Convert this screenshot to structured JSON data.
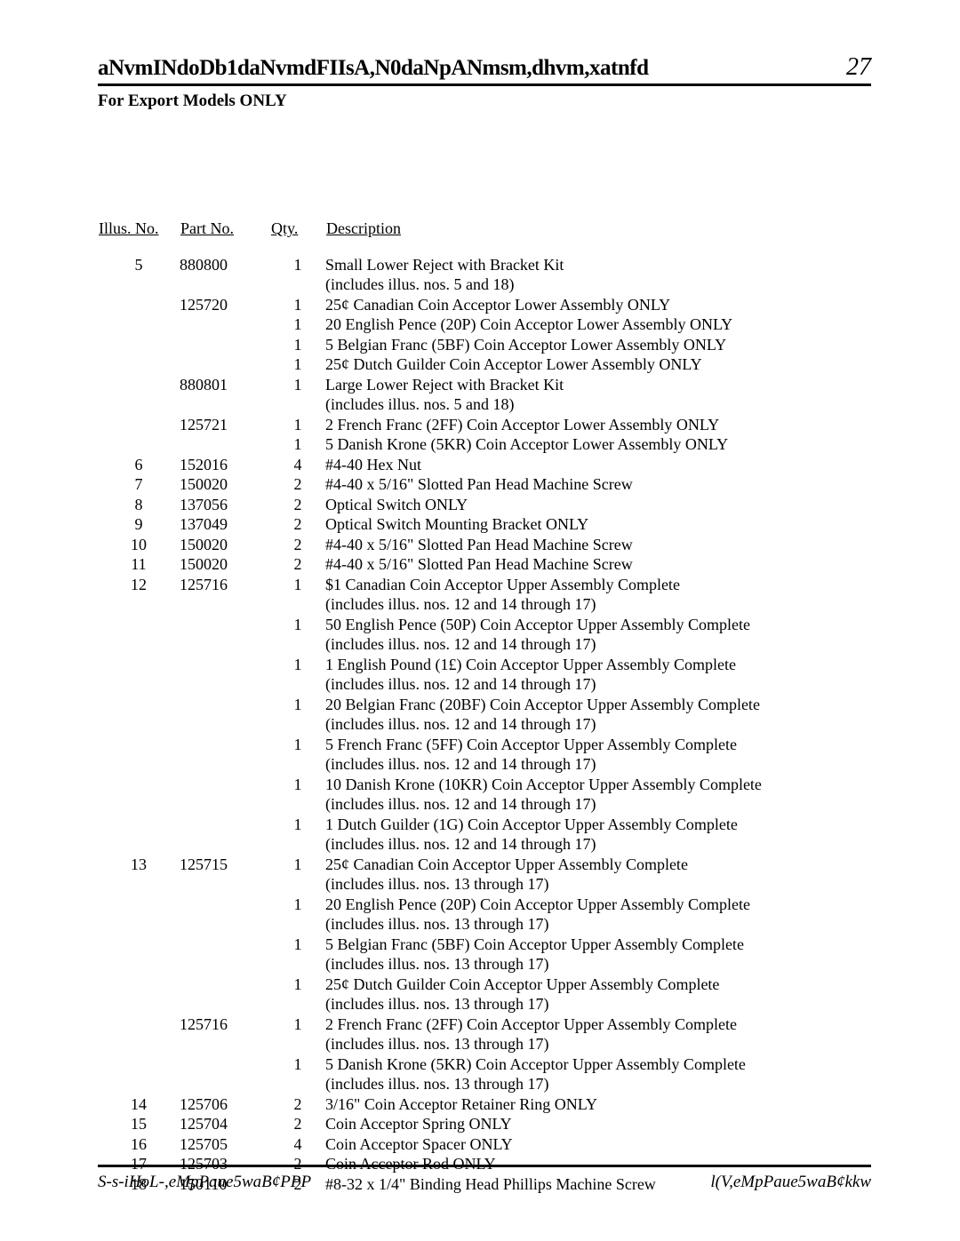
{
  "header": {
    "title": "aNvmINdoDb1daNvmdFIIsA,N0daNpANmsm,dhvm,xatnfd",
    "page_number": "27",
    "subhead": "For Export Models ONLY"
  },
  "columns": {
    "illus": "Illus. No.",
    "part": "Part No.",
    "qty": "Qty.",
    "desc": "Description"
  },
  "rows": [
    {
      "illus": "5",
      "part": "880800",
      "qty": "1",
      "desc": "Small Lower Reject with Bracket Kit"
    },
    {
      "illus": "",
      "part": "",
      "qty": "",
      "desc": "(includes illus. nos. 5 and 18)"
    },
    {
      "illus": "",
      "part": "125720",
      "qty": "1",
      "desc": "25¢ Canadian Coin Acceptor Lower Assembly ONLY"
    },
    {
      "illus": "",
      "part": "",
      "qty": "1",
      "desc": "20 English Pence (20P) Coin Acceptor Lower Assembly ONLY"
    },
    {
      "illus": "",
      "part": "",
      "qty": "1",
      "desc": "5 Belgian Franc (5BF) Coin Acceptor Lower Assembly ONLY"
    },
    {
      "illus": "",
      "part": "",
      "qty": "1",
      "desc": "25¢ Dutch Guilder Coin Acceptor Lower Assembly ONLY"
    },
    {
      "illus": "",
      "part": "880801",
      "qty": "1",
      "desc": "Large Lower Reject with Bracket Kit"
    },
    {
      "illus": "",
      "part": "",
      "qty": "",
      "desc": "(includes illus. nos. 5 and 18)"
    },
    {
      "illus": "",
      "part": "125721",
      "qty": "1",
      "desc": "2 French Franc (2FF) Coin Acceptor Lower Assembly ONLY"
    },
    {
      "illus": "",
      "part": "",
      "qty": "1",
      "desc": "5 Danish Krone (5KR) Coin Acceptor Lower Assembly ONLY"
    },
    {
      "illus": "6",
      "part": "152016",
      "qty": "4",
      "desc": "#4-40 Hex Nut"
    },
    {
      "illus": "7",
      "part": "150020",
      "qty": "2",
      "desc": "#4-40 x 5/16\" Slotted Pan Head Machine Screw"
    },
    {
      "illus": "8",
      "part": "137056",
      "qty": "2",
      "desc": "Optical Switch ONLY"
    },
    {
      "illus": "9",
      "part": "137049",
      "qty": "2",
      "desc": "Optical Switch Mounting Bracket ONLY"
    },
    {
      "illus": "10",
      "part": "150020",
      "qty": "2",
      "desc": "#4-40 x 5/16\" Slotted Pan Head Machine Screw"
    },
    {
      "illus": "11",
      "part": "150020",
      "qty": "2",
      "desc": "#4-40 x 5/16\" Slotted Pan Head Machine Screw"
    },
    {
      "illus": "12",
      "part": "125716",
      "qty": "1",
      "desc": "$1 Canadian Coin Acceptor Upper Assembly Complete"
    },
    {
      "illus": "",
      "part": "",
      "qty": "",
      "desc": "(includes illus. nos. 12 and 14 through 17)"
    },
    {
      "illus": "",
      "part": "",
      "qty": "1",
      "desc": "50 English Pence (50P) Coin Acceptor Upper Assembly Complete"
    },
    {
      "illus": "",
      "part": "",
      "qty": "",
      "desc": "(includes illus. nos. 12 and 14 through 17)"
    },
    {
      "illus": "",
      "part": "",
      "qty": "1",
      "desc": "1 English Pound (1£) Coin Acceptor Upper Assembly Complete"
    },
    {
      "illus": "",
      "part": "",
      "qty": "",
      "desc": "(includes illus. nos. 12 and 14 through 17)"
    },
    {
      "illus": "",
      "part": "",
      "qty": "1",
      "desc": "20 Belgian Franc (20BF) Coin Acceptor Upper Assembly Complete"
    },
    {
      "illus": "",
      "part": "",
      "qty": "",
      "desc": "(includes illus. nos. 12 and 14 through 17)"
    },
    {
      "illus": "",
      "part": "",
      "qty": "1",
      "desc": "5 French Franc (5FF) Coin Acceptor Upper Assembly Complete"
    },
    {
      "illus": "",
      "part": "",
      "qty": "",
      "desc": "(includes illus. nos. 12 and 14 through 17)"
    },
    {
      "illus": "",
      "part": "",
      "qty": "1",
      "desc": "10 Danish Krone (10KR) Coin Acceptor Upper Assembly Complete"
    },
    {
      "illus": "",
      "part": "",
      "qty": "",
      "desc": "(includes illus. nos. 12 and 14 through 17)"
    },
    {
      "illus": "",
      "part": "",
      "qty": "1",
      "desc": "1 Dutch Guilder (1G) Coin Acceptor Upper Assembly Complete"
    },
    {
      "illus": "",
      "part": "",
      "qty": "",
      "desc": "(includes illus. nos. 12 and 14 through 17)"
    },
    {
      "illus": "13",
      "part": "125715",
      "qty": "1",
      "desc": "25¢ Canadian Coin Acceptor Upper Assembly Complete"
    },
    {
      "illus": "",
      "part": "",
      "qty": "",
      "desc": "(includes illus. nos. 13 through 17)"
    },
    {
      "illus": "",
      "part": "",
      "qty": "1",
      "desc": "20 English Pence (20P) Coin Acceptor Upper Assembly Complete"
    },
    {
      "illus": "",
      "part": "",
      "qty": "",
      "desc": "(includes illus. nos. 13 through 17)"
    },
    {
      "illus": "",
      "part": "",
      "qty": "1",
      "desc": "5 Belgian Franc (5BF) Coin Acceptor Upper Assembly Complete"
    },
    {
      "illus": "",
      "part": "",
      "qty": "",
      "desc": "(includes illus. nos. 13 through 17)"
    },
    {
      "illus": "",
      "part": "",
      "qty": "1",
      "desc": "25¢ Dutch Guilder Coin Acceptor Upper Assembly Complete"
    },
    {
      "illus": "",
      "part": "",
      "qty": "",
      "desc": "(includes illus. nos. 13 through 17)"
    },
    {
      "illus": "",
      "part": "125716",
      "qty": "1",
      "desc": "2 French Franc (2FF) Coin Acceptor Upper Assembly Complete"
    },
    {
      "illus": "",
      "part": "",
      "qty": "",
      "desc": "(includes illus. nos. 13 through 17)"
    },
    {
      "illus": "",
      "part": "",
      "qty": "1",
      "desc": "5 Danish Krone (5KR) Coin Acceptor Upper Assembly Complete"
    },
    {
      "illus": "",
      "part": "",
      "qty": "",
      "desc": "(includes illus. nos. 13 through 17)"
    },
    {
      "illus": "14",
      "part": "125706",
      "qty": "2",
      "desc": "3/16\" Coin Acceptor Retainer Ring ONLY"
    },
    {
      "illus": "15",
      "part": "125704",
      "qty": "2",
      "desc": "Coin Acceptor Spring ONLY"
    },
    {
      "illus": "16",
      "part": "125705",
      "qty": "4",
      "desc": "Coin Acceptor Spacer ONLY"
    },
    {
      "illus": "17",
      "part": "125703",
      "qty": "2",
      "desc": "Coin Acceptor Rod ONLY"
    },
    {
      "illus": "18",
      "part": "150110",
      "qty": "2",
      "desc": "#8-32 x 1/4\" Binding Head Phillips Machine Screw"
    }
  ],
  "footer": {
    "left": "S-s-iHoL-,eMpPaue5waB¢PPP",
    "right": "l(V,eMpPaue5waB¢kkw"
  }
}
